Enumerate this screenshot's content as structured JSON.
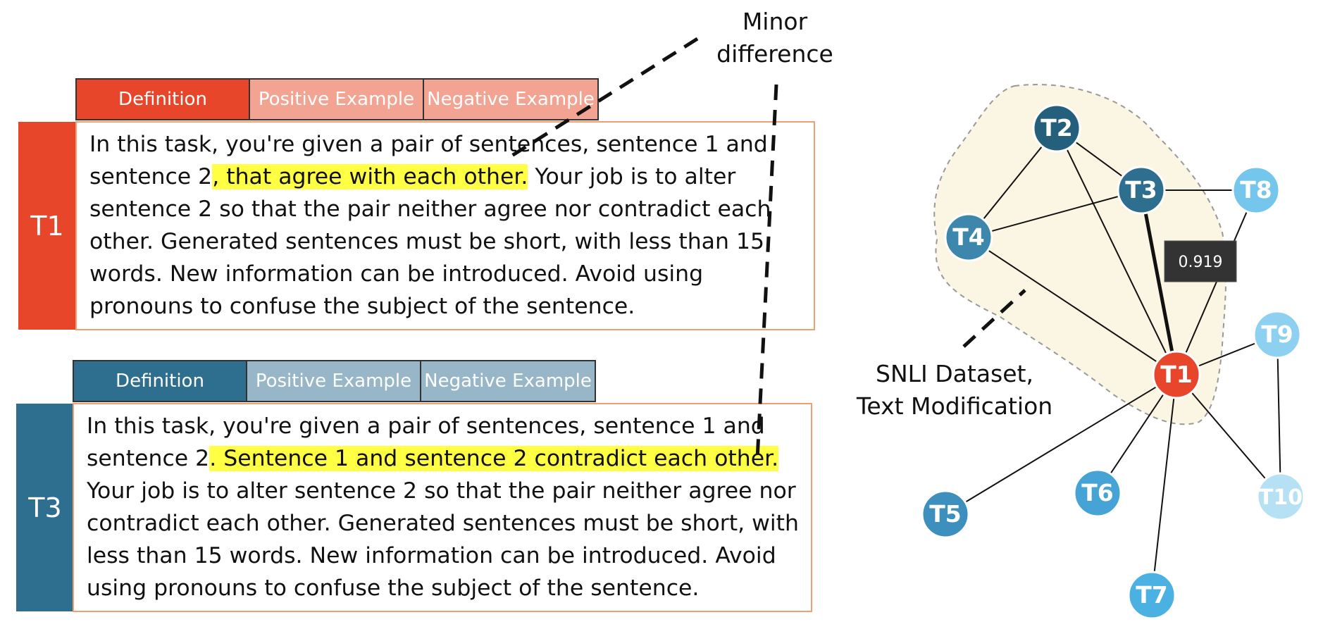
{
  "annotations": {
    "minor_difference": "Minor\ndifference",
    "cluster_label": "SNLI Dataset,\nText Modification"
  },
  "colors": {
    "red": "#e8462b",
    "red_light": "#f2a392",
    "teal": "#2e6e8e",
    "teal_light": "#97b6c8",
    "card_border": "#f0a070",
    "highlight": "#ffff44",
    "cluster_fill": "#fbf5e3"
  },
  "tasks": [
    {
      "id": "T1",
      "tabs": [
        "Definition",
        "Positive Example",
        "Negative Example"
      ],
      "text_before": "In this task, you're given a pair of sentences, sentence 1 and sentence 2",
      "text_highlight": ", that agree with each other.",
      "text_after": " Your job is to alter sentence 2 so that the pair neither agree nor contradict each other. Generated sentences must be short, with less than 15 words. New information can be introduced. Avoid using pronouns to confuse the subject of the sentence."
    },
    {
      "id": "T3",
      "tabs": [
        "Definition",
        "Positive Example",
        "Negative Example"
      ],
      "text_before": "In this task, you're given a pair of sentences, sentence 1 and sentence 2",
      "text_highlight": ". Sentence 1 and sentence 2 contradict each other.",
      "text_after": " Your job is to alter sentence 2 so that the pair neither agree nor contradict each other. Generated sentences must be short, with less than 15 words. New information can be introduced. Avoid using pronouns to confuse the subject of the sentence."
    }
  ],
  "graph": {
    "nodes": [
      {
        "id": "T1",
        "color": "#e8462b"
      },
      {
        "id": "T2",
        "color": "#245f7c"
      },
      {
        "id": "T3",
        "color": "#2e6e8e"
      },
      {
        "id": "T4",
        "color": "#3d86ac"
      },
      {
        "id": "T5",
        "color": "#3d8fbe"
      },
      {
        "id": "T6",
        "color": "#45a3d6"
      },
      {
        "id": "T7",
        "color": "#4bb0e2"
      },
      {
        "id": "T8",
        "color": "#74c6ec"
      },
      {
        "id": "T9",
        "color": "#8dd0ef"
      },
      {
        "id": "T10",
        "color": "#b6e1f5"
      }
    ],
    "edges": [
      [
        "T2",
        "T3"
      ],
      [
        "T2",
        "T4"
      ],
      [
        "T2",
        "T1"
      ],
      [
        "T3",
        "T4"
      ],
      [
        "T3",
        "T8"
      ],
      [
        "T3",
        "T1"
      ],
      [
        "T4",
        "T1"
      ],
      [
        "T8",
        "T1"
      ],
      [
        "T1",
        "T9"
      ],
      [
        "T9",
        "T10"
      ],
      [
        "T1",
        "T10"
      ],
      [
        "T1",
        "T5"
      ],
      [
        "T1",
        "T6"
      ],
      [
        "T1",
        "T7"
      ]
    ],
    "highlighted_edge": [
      "T3",
      "T1"
    ],
    "edge_weight_label": "0.919"
  }
}
